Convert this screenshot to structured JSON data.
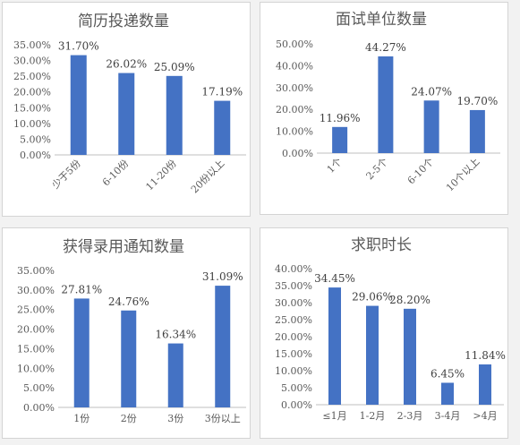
{
  "colors": {
    "bar": "#4472c4",
    "axis": "#bfbfbf",
    "text": "#595959",
    "background": "#ffffff"
  },
  "chart_data": [
    {
      "type": "bar",
      "title": "简历投递数量",
      "categories": [
        "少于5份",
        "6-10份",
        "11-20份",
        "20份以上"
      ],
      "values": [
        31.7,
        26.02,
        25.09,
        17.19
      ],
      "data_labels": [
        "31.70%",
        "26.02%",
        "25.09%",
        "17.19%"
      ],
      "y_ticks": [
        "0.00%",
        "5.00%",
        "10.00%",
        "15.00%",
        "20.00%",
        "25.00%",
        "30.00%",
        "35.00%"
      ],
      "ylim": [
        0,
        35
      ],
      "x_tick_rotation": "-45deg",
      "grid": false
    },
    {
      "type": "bar",
      "title": "面试单位数量",
      "categories": [
        "1个",
        "2-5个",
        "6-10个",
        "10个以上"
      ],
      "values": [
        11.96,
        44.27,
        24.07,
        19.7
      ],
      "data_labels": [
        "11.96%",
        "44.27%",
        "24.07%",
        "19.70%"
      ],
      "y_ticks": [
        "0.00%",
        "10.00%",
        "20.00%",
        "30.00%",
        "40.00%",
        "50.00%"
      ],
      "ylim": [
        0,
        50
      ],
      "x_tick_rotation": "-45deg",
      "grid": false
    },
    {
      "type": "bar",
      "title": "获得录用通知数量",
      "categories": [
        "1份",
        "2份",
        "3份",
        "3份以上"
      ],
      "values": [
        27.81,
        24.76,
        16.34,
        31.09
      ],
      "data_labels": [
        "27.81%",
        "24.76%",
        "16.34%",
        "31.09%"
      ],
      "y_ticks": [
        "0.00%",
        "5.00%",
        "10.00%",
        "15.00%",
        "20.00%",
        "25.00%",
        "30.00%",
        "35.00%"
      ],
      "ylim": [
        0,
        35
      ],
      "x_tick_rotation": "0deg",
      "grid": false
    },
    {
      "type": "bar",
      "title": "求职时长",
      "categories": [
        "≤1月",
        "1-2月",
        "2-3月",
        "3-4月",
        ">4月"
      ],
      "values": [
        34.45,
        29.06,
        28.2,
        6.45,
        11.84
      ],
      "data_labels": [
        "34.45%",
        "29.06%",
        "28.20%",
        "6.45%",
        "11.84%"
      ],
      "y_ticks": [
        "0.00%",
        "5.00%",
        "10.00%",
        "15.00%",
        "20.00%",
        "25.00%",
        "30.00%",
        "35.00%",
        "40.00%"
      ],
      "ylim": [
        0,
        40
      ],
      "x_tick_rotation": "0deg",
      "grid": false
    }
  ]
}
